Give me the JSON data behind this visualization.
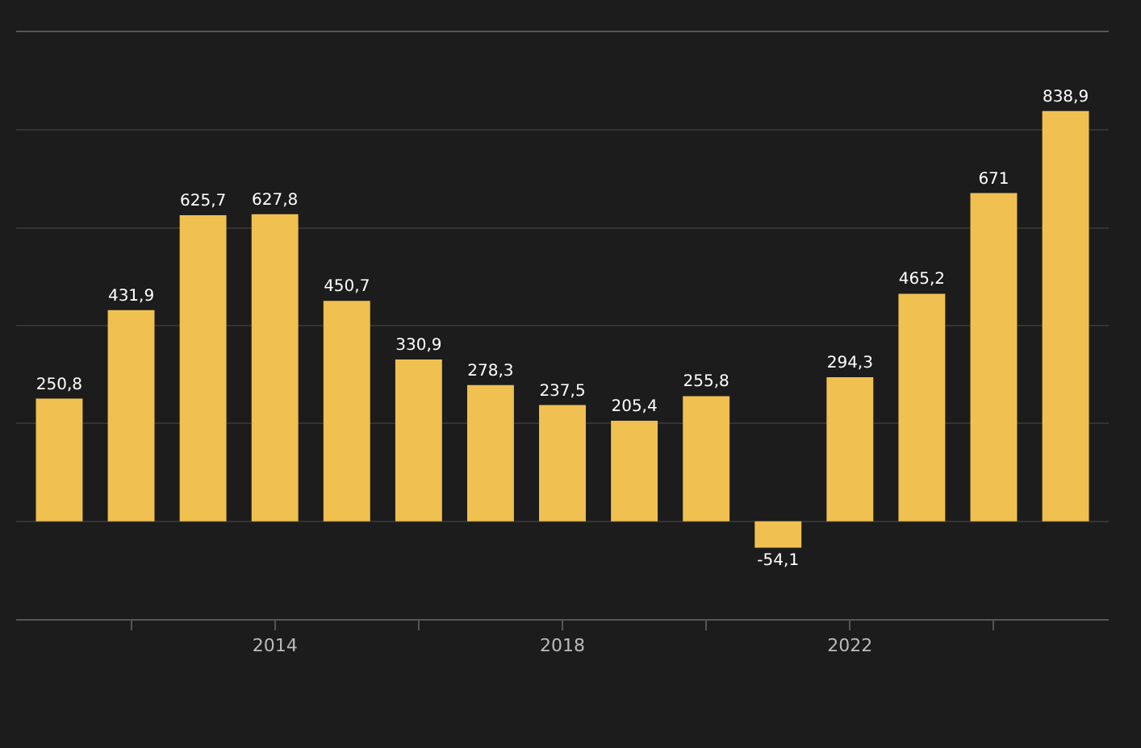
{
  "chart_data": {
    "type": "bar",
    "x": [
      2011,
      2012,
      2013,
      2014,
      2015,
      2016,
      2017,
      2018,
      2019,
      2020,
      2021,
      2022,
      2023,
      2024,
      2025
    ],
    "values": [
      250.8,
      431.9,
      625.7,
      627.8,
      450.7,
      330.9,
      278.3,
      237.5,
      205.4,
      255.8,
      -54.1,
      294.3,
      465.2,
      671,
      838.9
    ],
    "value_labels": [
      "250,8",
      "431,9",
      "625,7",
      "627,8",
      "450,7",
      "330,9",
      "278,3",
      "237,5",
      "205,4",
      "255,8",
      "-54,1",
      "294,3",
      "465,2",
      "671",
      "838,9"
    ],
    "color": "#f0c050",
    "xlim": [
      2010.4,
      2025.6
    ],
    "xticks": [
      {
        "value": 2012,
        "label": null
      },
      2014,
      {
        "value": 2016,
        "label": null
      },
      2018,
      {
        "value": 2020,
        "label": null
      },
      2022,
      {
        "value": 2024,
        "label": null
      }
    ],
    "ylim": [
      -200,
      1000
    ],
    "yticks": [
      {
        "value": -200,
        "label": null
      },
      {
        "value": 0,
        "label": null
      },
      {
        "value": 200,
        "label": null
      },
      {
        "value": 400,
        "label": null
      },
      {
        "value": 600,
        "label": null
      },
      {
        "value": 800,
        "label": null
      },
      {
        "value": 1000,
        "label": null
      }
    ],
    "grid": "y",
    "tick_labels": "x"
  }
}
